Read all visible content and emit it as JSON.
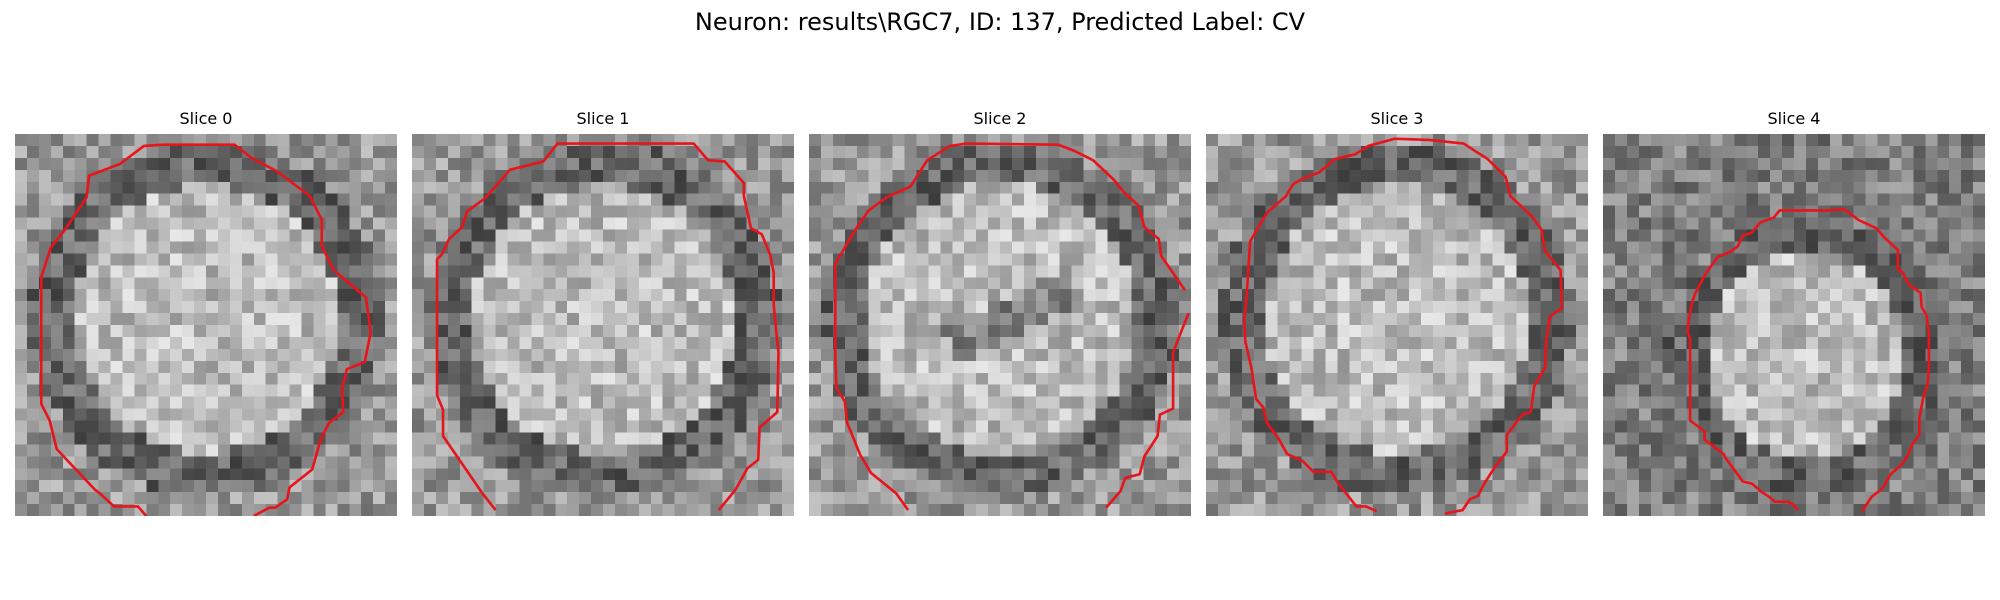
{
  "figure": {
    "title": "Neuron: results\\RGC7, ID: 137, Predicted Label: CV"
  },
  "contour_color": "#e8141b",
  "colormap": "grayscale",
  "panels": [
    {
      "title": "Slice 0",
      "seed": 11,
      "style": "ring"
    },
    {
      "title": "Slice 1",
      "seed": 23,
      "style": "ring"
    },
    {
      "title": "Slice 2",
      "seed": 37,
      "style": "ring-streak"
    },
    {
      "title": "Slice 3",
      "seed": 41,
      "style": "ring"
    },
    {
      "title": "Slice 4",
      "seed": 59,
      "style": "small-ring"
    }
  ]
}
